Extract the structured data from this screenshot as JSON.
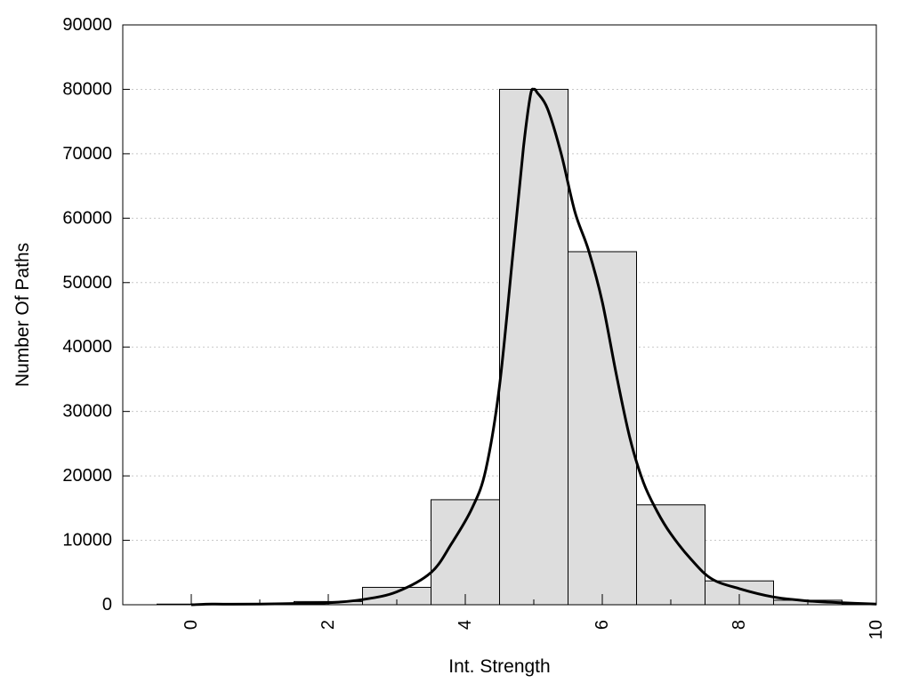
{
  "chart_data": {
    "type": "bar",
    "title": "",
    "xlabel": "Int. Strength",
    "ylabel": "Number Of Paths",
    "xlim": [
      -1,
      10
    ],
    "ylim": [
      0,
      90000
    ],
    "x_ticks": [
      0,
      2,
      4,
      6,
      8,
      10
    ],
    "y_ticks": [
      0,
      10000,
      20000,
      30000,
      40000,
      50000,
      60000,
      70000,
      80000,
      90000
    ],
    "grid": "horizontal dotted",
    "bar_color": "#dddddd",
    "bar_edge_color": "#000000",
    "bars": [
      {
        "x": 0,
        "value": 100
      },
      {
        "x": 1,
        "value": 200
      },
      {
        "x": 2,
        "value": 500
      },
      {
        "x": 3,
        "value": 2700
      },
      {
        "x": 4,
        "value": 16300
      },
      {
        "x": 5,
        "value": 80000
      },
      {
        "x": 6,
        "value": 54800
      },
      {
        "x": 7,
        "value": 15500
      },
      {
        "x": 8,
        "value": 3700
      },
      {
        "x": 9,
        "value": 700
      },
      {
        "x": 10,
        "value": 100
      }
    ],
    "curve": {
      "color": "#000000",
      "points": [
        [
          0,
          0
        ],
        [
          0.3,
          100
        ],
        [
          0.6,
          80
        ],
        [
          1.0,
          100
        ],
        [
          1.5,
          200
        ],
        [
          2.0,
          300
        ],
        [
          2.5,
          800
        ],
        [
          3.0,
          2000
        ],
        [
          3.5,
          5000
        ],
        [
          3.8,
          9500
        ],
        [
          4.1,
          15000
        ],
        [
          4.3,
          21000
        ],
        [
          4.5,
          34000
        ],
        [
          4.7,
          55000
        ],
        [
          4.85,
          71000
        ],
        [
          4.95,
          79000
        ],
        [
          5.0,
          80000
        ],
        [
          5.05,
          79500
        ],
        [
          5.2,
          77000
        ],
        [
          5.4,
          70000
        ],
        [
          5.6,
          61000
        ],
        [
          5.8,
          55000
        ],
        [
          6.0,
          47000
        ],
        [
          6.2,
          36000
        ],
        [
          6.4,
          26000
        ],
        [
          6.6,
          19000
        ],
        [
          6.8,
          14500
        ],
        [
          7.0,
          11000
        ],
        [
          7.3,
          7000
        ],
        [
          7.6,
          4000
        ],
        [
          8.0,
          2500
        ],
        [
          8.5,
          1200
        ],
        [
          9.0,
          600
        ],
        [
          9.5,
          300
        ],
        [
          10.0,
          100
        ]
      ]
    }
  }
}
